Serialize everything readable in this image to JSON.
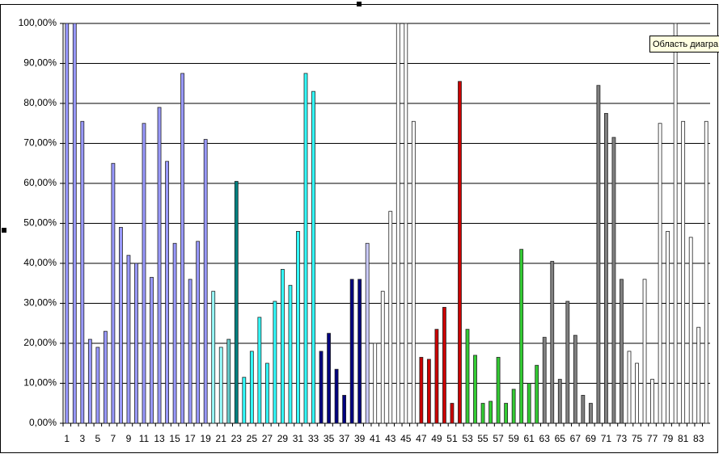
{
  "chart_data": {
    "type": "bar",
    "tooltip": "Область диагра",
    "categories": [
      1,
      null,
      3,
      null,
      5,
      null,
      7,
      null,
      9,
      null,
      11,
      null,
      13,
      null,
      15,
      null,
      17,
      null,
      19,
      null,
      21,
      null,
      23,
      null,
      25,
      null,
      27,
      null,
      29,
      null,
      31,
      null,
      33,
      null,
      35,
      null,
      37,
      null,
      39,
      null,
      41,
      null,
      43,
      null,
      45,
      null,
      47,
      null,
      49,
      null,
      51,
      null,
      53,
      null,
      55,
      null,
      57,
      null,
      59,
      null,
      61,
      null,
      63,
      null,
      65,
      null,
      67,
      null,
      69,
      null,
      71,
      null,
      73,
      null,
      75,
      null,
      77,
      null,
      79,
      null,
      81,
      null,
      83,
      null
    ],
    "values": [
      100,
      100,
      75.5,
      21,
      19,
      23,
      65,
      49,
      42,
      40,
      75,
      36.5,
      79,
      65.5,
      45,
      87.5,
      36,
      45.5,
      71,
      33,
      19,
      21,
      60.5,
      11.5,
      18,
      26.5,
      15,
      30.5,
      38.5,
      34.5,
      48,
      87.5,
      83,
      18,
      22.5,
      13.5,
      7,
      36,
      36,
      45,
      20,
      33,
      53,
      100,
      100,
      75.5,
      16.5,
      16,
      23.5,
      29,
      5,
      85.5,
      23.5,
      17,
      5,
      5.5,
      16.5,
      5,
      8.5,
      43.5,
      10,
      14.5,
      21.5,
      40.5,
      11,
      30.5,
      22,
      7,
      5,
      84.5,
      77.5,
      71.5,
      36,
      18,
      15,
      36,
      11,
      75,
      48,
      100,
      75.5,
      46.5,
      24,
      75.5
    ],
    "colors": [
      "#9999ff",
      "#9999ff",
      "#9999ff",
      "#9999ff",
      "#9999ff",
      "#9999ff",
      "#9999ff",
      "#9999ff",
      "#9999ff",
      "#9999ff",
      "#9999ff",
      "#9999ff",
      "#9999ff",
      "#9999ff",
      "#9999ff",
      "#9999ff",
      "#9999ff",
      "#9999ff",
      "#9999ff",
      "#99ffff",
      "#99ffff",
      "#66cccc",
      "#008080",
      "#33ffff",
      "#33ffff",
      "#33ffff",
      "#33ffff",
      "#33ffff",
      "#33ffff",
      "#33ffff",
      "#33ffff",
      "#33ffff",
      "#33ffff",
      "#000080",
      "#000080",
      "#000080",
      "#000080",
      "#000080",
      "#000080",
      "#ccccff",
      "#ffffff",
      "#ffffff",
      "#ffffff",
      "#ffffff",
      "#ffffff",
      "#ffffff",
      "#cc0000",
      "#cc0000",
      "#cc0000",
      "#cc0000",
      "#cc0000",
      "#cc0000",
      "#33cc33",
      "#33cc33",
      "#33cc33",
      "#33cc33",
      "#33cc33",
      "#33cc33",
      "#33cc33",
      "#33cc33",
      "#33cc33",
      "#33cc33",
      "#808080",
      "#808080",
      "#808080",
      "#808080",
      "#808080",
      "#808080",
      "#808080",
      "#808080",
      "#808080",
      "#808080",
      "#808080",
      "#ffffff",
      "#ffffff",
      "#ffffff",
      "#ffffff",
      "#ffffff",
      "#ffffff",
      "#ffffff",
      "#ffffff",
      "#ffffff",
      "#ffffff",
      "#ffffff"
    ],
    "ylim": [
      0,
      100
    ],
    "yticks": [
      {
        "value": 0,
        "label": "0,00%"
      },
      {
        "value": 10,
        "label": "10,00%"
      },
      {
        "value": 20,
        "label": "20,00%"
      },
      {
        "value": 30,
        "label": "30,00%"
      },
      {
        "value": 40,
        "label": "40,00%"
      },
      {
        "value": 50,
        "label": "50,00%"
      },
      {
        "value": 60,
        "label": "60,00%"
      },
      {
        "value": 70,
        "label": "70,00%"
      },
      {
        "value": 80,
        "label": "80,00%"
      },
      {
        "value": 90,
        "label": "90,00%"
      },
      {
        "value": 100,
        "label": "100,00%"
      }
    ],
    "grid": true
  }
}
